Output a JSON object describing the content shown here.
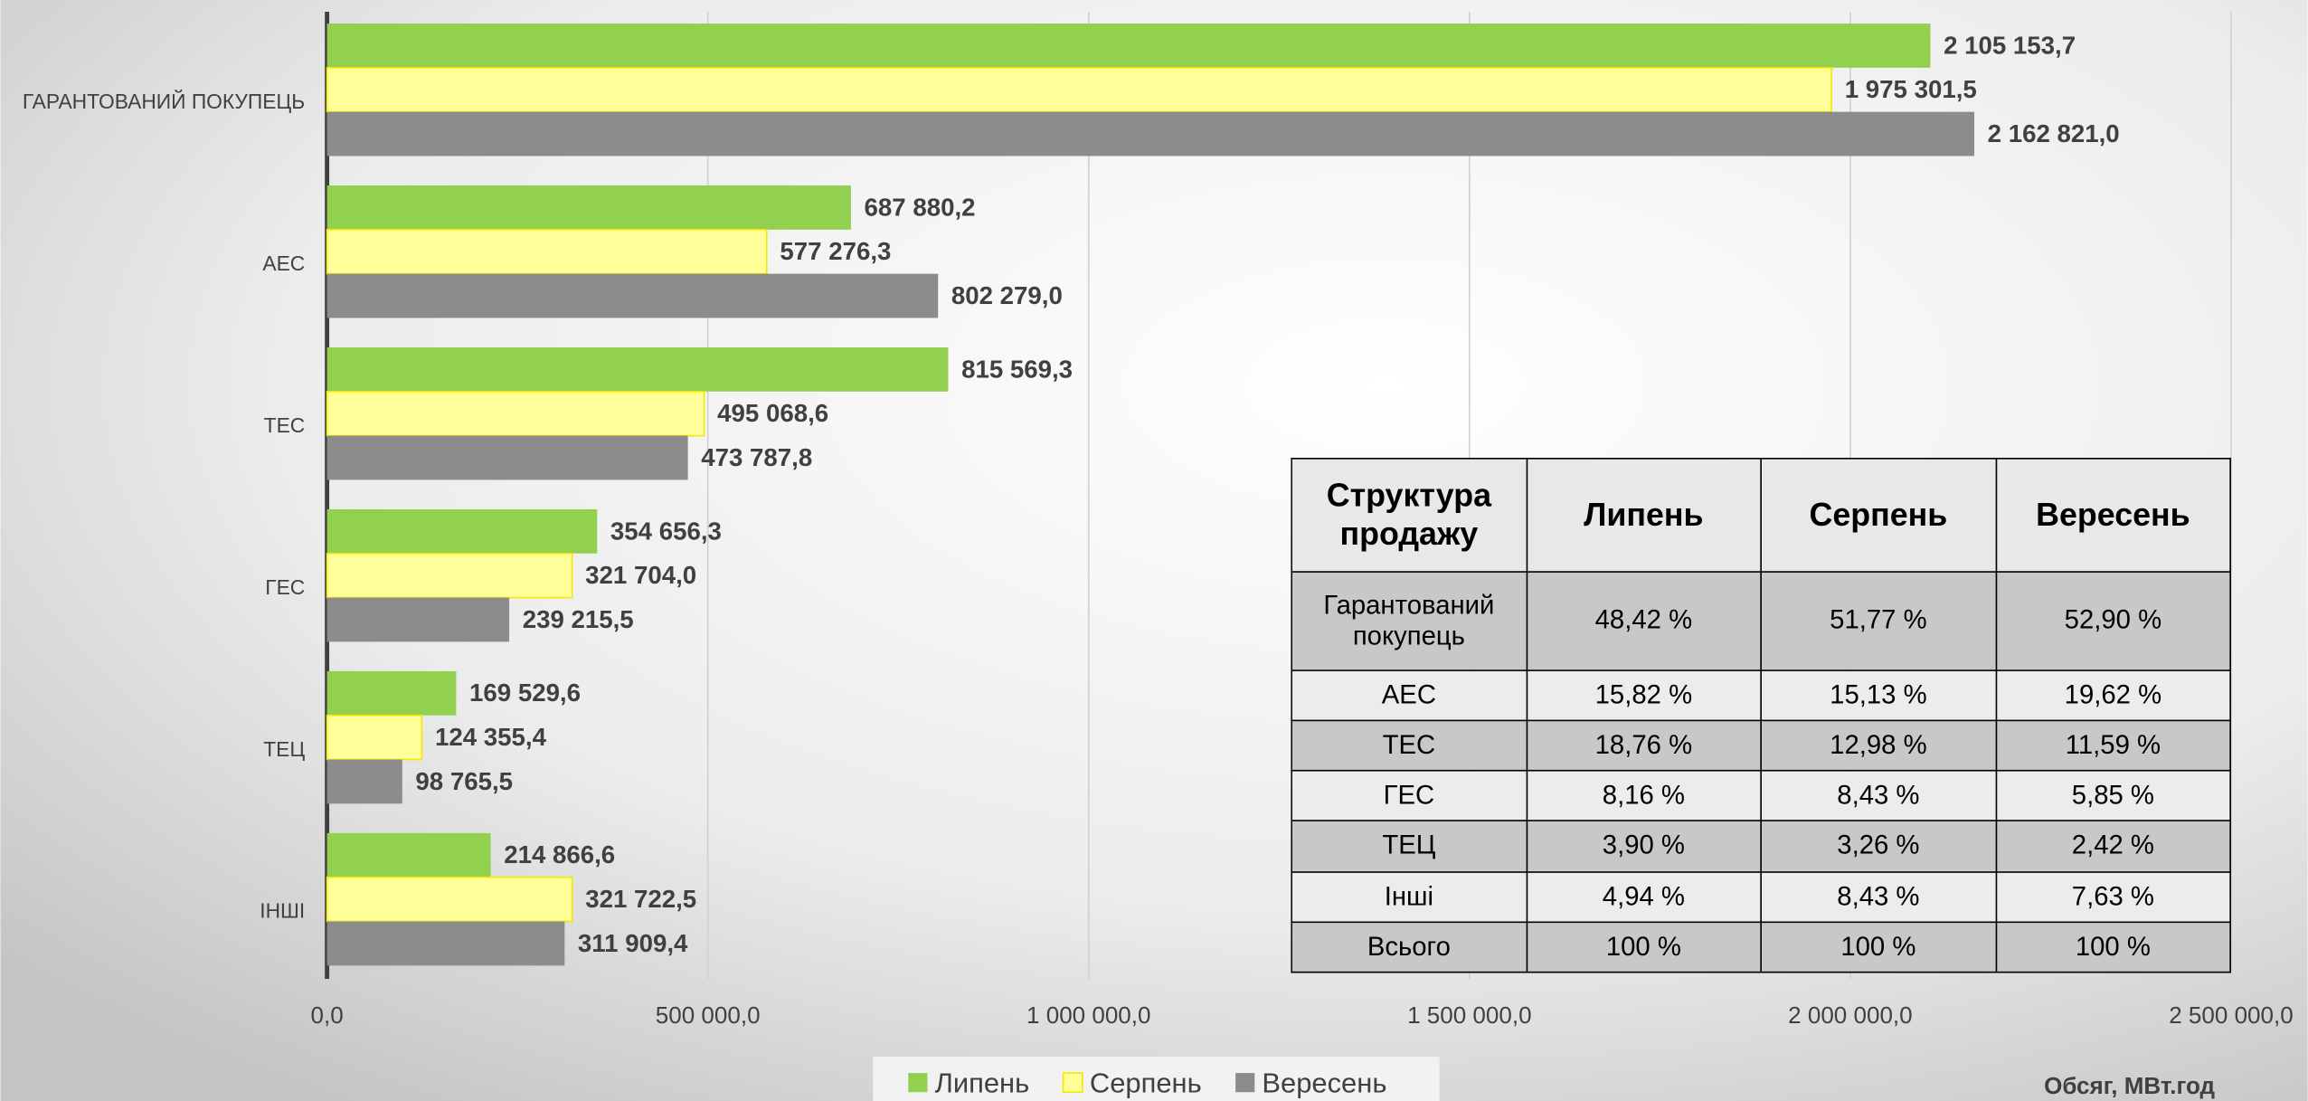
{
  "chart_data": {
    "type": "barh",
    "categories": [
      "ГАРАНТОВАНИЙ ПОКУПЕЦЬ",
      "АЕС",
      "ТЕС",
      "ГЕС",
      "ТЕЦ",
      "ІНШІ"
    ],
    "series": [
      {
        "name": "Липень",
        "color": "#92d050",
        "values": [
          2105153.7,
          687880.2,
          815569.3,
          354656.3,
          169529.6,
          214866.6
        ],
        "value_labels": [
          "2 105 153,7",
          "687 880,2",
          "815 569,3",
          "354 656,3",
          "169 529,6",
          "214 866,6"
        ]
      },
      {
        "name": "Серпень",
        "color": "#ffff99",
        "values": [
          1975301.5,
          577276.3,
          495068.6,
          321704.0,
          124355.4,
          321722.5
        ],
        "value_labels": [
          "1 975 301,5",
          "577 276,3",
          "495 068,6",
          "321 704,0",
          "124 355,4",
          "321 722,5"
        ]
      },
      {
        "name": "Вересень",
        "color": "#8c8c8c",
        "values": [
          2162821.0,
          802279.0,
          473787.8,
          239215.5,
          98765.5,
          311909.4
        ],
        "value_labels": [
          "2 162 821,0",
          "802 279,0",
          "473 787,8",
          "239 215,5",
          "98 765,5",
          "311 909,4"
        ]
      }
    ],
    "xlim": [
      0,
      2500000
    ],
    "xticks": [
      {
        "value": 0,
        "label": "0,0"
      },
      {
        "value": 500000,
        "label": "500 000,0"
      },
      {
        "value": 1000000,
        "label": "1 000 000,0"
      },
      {
        "value": 1500000,
        "label": "1 500 000,0"
      },
      {
        "value": 2000000,
        "label": "2 000 000,0"
      },
      {
        "value": 2500000,
        "label": "2 500 000,0"
      }
    ],
    "xlabel": "Обсяг, МВт.год",
    "grid": true,
    "legend": "bottom"
  },
  "table": {
    "header": [
      "Структура продажу",
      "Липень",
      "Серпень",
      "Вересень"
    ],
    "rows": [
      [
        "Гарантований покупець",
        "48,42 %",
        "51,77 %",
        "52,90 %"
      ],
      [
        "АЕС",
        "15,82 %",
        "15,13 %",
        "19,62 %"
      ],
      [
        "ТЕС",
        "18,76 %",
        "12,98 %",
        "11,59 %"
      ],
      [
        "ГЕС",
        "8,16 %",
        "8,43 %",
        "5,85 %"
      ],
      [
        "ТЕЦ",
        "3,90 %",
        "3,26 %",
        "2,42 %"
      ],
      [
        "Інші",
        "4,94 %",
        "8,43 %",
        "7,63 %"
      ],
      [
        "Всього",
        "100 %",
        "100 %",
        "100 %"
      ]
    ]
  }
}
